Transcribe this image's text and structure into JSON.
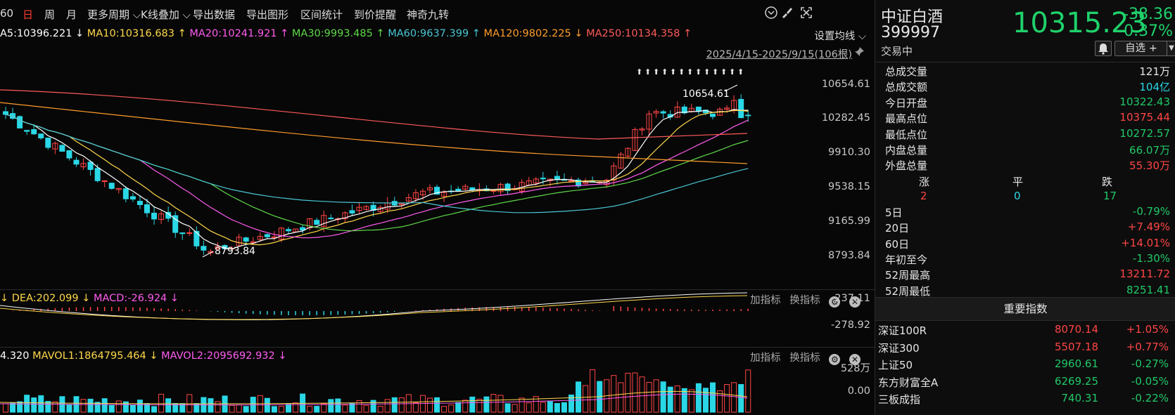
{
  "toolbar": {
    "items": [
      {
        "label": "60",
        "active": false
      },
      {
        "label": "日",
        "active": true
      },
      {
        "label": "周",
        "active": false
      },
      {
        "label": "月",
        "active": false
      },
      {
        "label": "更多周期 ⌵",
        "active": false
      },
      {
        "label": "K线叠加 ⌵",
        "active": false
      },
      {
        "label": "导出数据",
        "active": false
      },
      {
        "label": "导出图形",
        "active": false
      },
      {
        "label": "区间统计",
        "active": false
      },
      {
        "label": "到价提醒",
        "active": false
      },
      {
        "label": "神奇九转",
        "active": false
      }
    ]
  },
  "ma_line": [
    {
      "text": "A5:10396.221 ↓",
      "color": "#ffffff"
    },
    {
      "text": " MA10:10316.683 ↑",
      "color": "#ffd84a"
    },
    {
      "text": " MA20:10241.921 ↑",
      "color": "#ff5cf0"
    },
    {
      "text": " MA30:9993.485 ↑",
      "color": "#5fd84a"
    },
    {
      "text": " MA60:9637.399 ↑",
      "color": "#49c6d4"
    },
    {
      "text": " MA120:9802.225 ↓",
      "color": "#ff9c2a"
    },
    {
      "text": " MA250:10134.358 ↑",
      "color": "#ff5a5a"
    }
  ],
  "ma_setting_label": "设置均线 ⌵",
  "range_label": "2025/4/15-2025/9/15(106根)",
  "y_ticks": [
    "10654.61",
    "10282.45",
    "9910.30",
    "9538.15",
    "9165.99",
    "8793.84"
  ],
  "high_annotation": "10654.61",
  "low_annotation": "8793.84",
  "dea_line": [
    {
      "text": "↓ DEA:202.099 ↓",
      "color": "#ffd84a"
    },
    {
      "text": " MACD:-26.924 ↓",
      "color": "#ff5cf0"
    }
  ],
  "macd_ticks": [
    "237.11",
    "-278.92"
  ],
  "vol_line": [
    {
      "text": "4.320",
      "color": "#ffffff"
    },
    {
      "text": "  MAVOL1:1864795.464 ↓",
      "color": "#ffd84a"
    },
    {
      "text": "  MAVOL2:2095692.932 ↓",
      "color": "#ff5cf0"
    }
  ],
  "vol_ticks": [
    "528万",
    "0.00"
  ],
  "indicator_tools": {
    "add": "加指标",
    "swap": "换指标",
    "gear": "⚙",
    "close": "✕"
  },
  "stock": {
    "name": "中证白酒",
    "code": "399997",
    "price": "10315.23",
    "change": "-38.36",
    "change_pct": "-0.37%",
    "status": "交易中",
    "watch_label": "自选 +"
  },
  "stats": [
    {
      "label": "总成交量",
      "value": "121万",
      "color": "#e6e6e6"
    },
    {
      "label": "总成交额",
      "value": "104亿",
      "color": "#2ad7e6"
    },
    {
      "label": "今日开盘",
      "value": "10322.43",
      "color": "#20c968"
    },
    {
      "label": "最高点位",
      "value": "10375.44",
      "color": "#ff4545"
    },
    {
      "label": "最低点位",
      "value": "10272.57",
      "color": "#20c968"
    },
    {
      "label": "内盘总量",
      "value": "66.07万",
      "color": "#20c968"
    },
    {
      "label": "外盘总量",
      "value": "55.30万",
      "color": "#ff4545"
    }
  ],
  "updown": {
    "labels": [
      "涨",
      "平",
      "跌"
    ],
    "values": [
      "2",
      "0",
      "17"
    ]
  },
  "perf": [
    {
      "label": "5日",
      "value": "-0.79%",
      "color": "#20c968"
    },
    {
      "label": "20日",
      "value": "+7.49%",
      "color": "#ff4545"
    },
    {
      "label": "60日",
      "value": "+14.01%",
      "color": "#ff4545"
    },
    {
      "label": "年初至今",
      "value": "-1.30%",
      "color": "#20c968"
    },
    {
      "label": "52周最高",
      "value": "13211.72",
      "color": "#ff4545"
    },
    {
      "label": "52周最低",
      "value": "8251.41",
      "color": "#20c968"
    }
  ],
  "index_title": "重要指数",
  "indices": [
    {
      "name": "深证100R",
      "price": "8070.14",
      "pct": "+1.05%",
      "color": "#ff4545"
    },
    {
      "name": "深证300",
      "price": "5507.18",
      "pct": "+0.77%",
      "color": "#ff4545"
    },
    {
      "name": "上证50",
      "price": "2960.61",
      "pct": "-0.27%",
      "color": "#20c968"
    },
    {
      "name": "东方财富全A",
      "price": "6269.25",
      "pct": "-0.05%",
      "color": "#20c968"
    },
    {
      "name": "三板成指",
      "price": "740.31",
      "pct": "-0.22%",
      "color": "#20c968"
    }
  ],
  "colors": {
    "up": "#ff4545",
    "down": "#2ad7e6",
    "bg": "#070707"
  },
  "icons": [
    "chevron-down-circle-icon",
    "brush-icon",
    "fullscreen-icon",
    "pin-icon",
    "bell-icon",
    "gear-icon",
    "close-icon"
  ]
}
